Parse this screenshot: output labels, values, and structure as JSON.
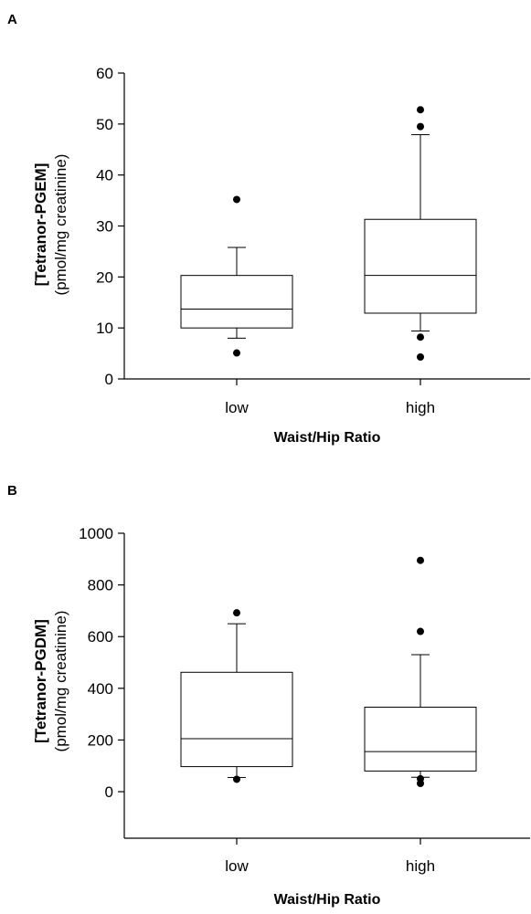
{
  "chart_data": [
    {
      "type": "boxplot",
      "panel_label": "A",
      "xlabel": "Waist/Hip Ratio",
      "ylabel_main": "[Tetranor-PGEM]",
      "ylabel_sub": "(pmol/mg creatinine)",
      "ylim": [
        0,
        60
      ],
      "yticks": [
        0,
        10,
        20,
        30,
        40,
        50,
        60
      ],
      "ytick_labels": [
        "0",
        "10",
        "20",
        "30",
        "40",
        "50",
        "60"
      ],
      "categories": [
        "low",
        "high"
      ],
      "boxes": [
        {
          "category": "low",
          "whisker_low": 8,
          "q1": 10,
          "median": 13.7,
          "q3": 20.3,
          "whisker_high": 25.8,
          "outliers": [
            5.1,
            35.2
          ]
        },
        {
          "category": "high",
          "whisker_low": 9.4,
          "q1": 12.9,
          "median": 20.3,
          "q3": 31.3,
          "whisker_high": 47.9,
          "outliers": [
            4.3,
            8.2,
            49.5,
            52.8
          ]
        }
      ],
      "grid": false
    },
    {
      "type": "boxplot",
      "panel_label": "B",
      "xlabel": "Waist/Hip Ratio",
      "ylabel_main": "[Tetranor-PGDM]",
      "ylabel_sub": "(pmol/mg creatinine)",
      "ylim": [
        -180,
        1000
      ],
      "yticks": [
        0,
        200,
        400,
        600,
        800,
        1000
      ],
      "ytick_labels": [
        "0",
        "200",
        "400",
        "600",
        "800",
        "1000"
      ],
      "categories": [
        "low",
        "high"
      ],
      "boxes": [
        {
          "category": "low",
          "whisker_low": 55,
          "q1": 97,
          "median": 205,
          "q3": 462,
          "whisker_high": 650,
          "outliers": [
            48,
            692
          ]
        },
        {
          "category": "high",
          "whisker_low": 56,
          "q1": 80,
          "median": 155,
          "q3": 327,
          "whisker_high": 530,
          "outliers": [
            32,
            50,
            620,
            895
          ]
        }
      ],
      "grid": false
    }
  ]
}
